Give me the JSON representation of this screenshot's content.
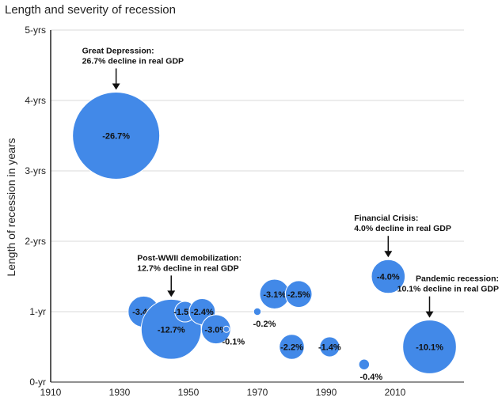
{
  "chart_data": {
    "type": "scatter",
    "title": "Length and severity of recession",
    "xlabel": "",
    "ylabel": "Length of recession in years",
    "xlim": [
      1910,
      2030
    ],
    "ylim": [
      0,
      5
    ],
    "x_ticks": [
      1910,
      1930,
      1950,
      1970,
      1990,
      2010
    ],
    "y_ticks": [
      "0-yr",
      "1-yr",
      "2-yrs",
      "3-yrs",
      "4-yrs",
      "5-yrs"
    ],
    "grid": true,
    "bubble_color": "#4289E8",
    "points": [
      {
        "x": 1929,
        "y": 3.5,
        "decline": -26.7,
        "label": "-26.7%"
      },
      {
        "x": 1937,
        "y": 1.0,
        "decline": -3.4,
        "label": "-3.4%"
      },
      {
        "x": 1945,
        "y": 0.75,
        "decline": -12.7,
        "label": "-12.7%"
      },
      {
        "x": 1949,
        "y": 1.0,
        "decline": -1.5,
        "label": "-1.5%"
      },
      {
        "x": 1954,
        "y": 1.0,
        "decline": -2.4,
        "label": "-2.4%"
      },
      {
        "x": 1958,
        "y": 0.75,
        "decline": -3.0,
        "label": "-3.0%"
      },
      {
        "x": 1961,
        "y": 0.75,
        "decline": -0.1,
        "label": "-0.1%"
      },
      {
        "x": 1970,
        "y": 1.0,
        "decline": -0.2,
        "label": "-0.2%"
      },
      {
        "x": 1975,
        "y": 1.25,
        "decline": -3.1,
        "label": "-3.1%"
      },
      {
        "x": 1980,
        "y": 0.5,
        "decline": -2.2,
        "label": "-2.2%"
      },
      {
        "x": 1982,
        "y": 1.25,
        "decline": -2.5,
        "label": "-2.5%"
      },
      {
        "x": 1991,
        "y": 0.5,
        "decline": -1.4,
        "label": "-1.4%"
      },
      {
        "x": 2001,
        "y": 0.25,
        "decline": -0.4,
        "label": "-0.4%"
      },
      {
        "x": 2008,
        "y": 1.5,
        "decline": -4.0,
        "label": "-4.0%"
      },
      {
        "x": 2020,
        "y": 0.5,
        "decline": -10.1,
        "label": "-10.1%"
      }
    ],
    "annotations": [
      {
        "line1": "Great Depression:",
        "line2": "26.7% decline in real GDP",
        "x": 1929,
        "y": 3.5
      },
      {
        "line1": "Post-WWII demobilization:",
        "line2": "12.7% decline in real GDP",
        "x": 1945,
        "y": 0.75
      },
      {
        "line1": "Financial Crisis:",
        "line2": "4.0% decline in real GDP",
        "x": 2008,
        "y": 1.5
      },
      {
        "line1": "Pandemic recession:",
        "line2": "10.1% decline in real GDP",
        "x": 2020,
        "y": 0.5
      }
    ]
  }
}
